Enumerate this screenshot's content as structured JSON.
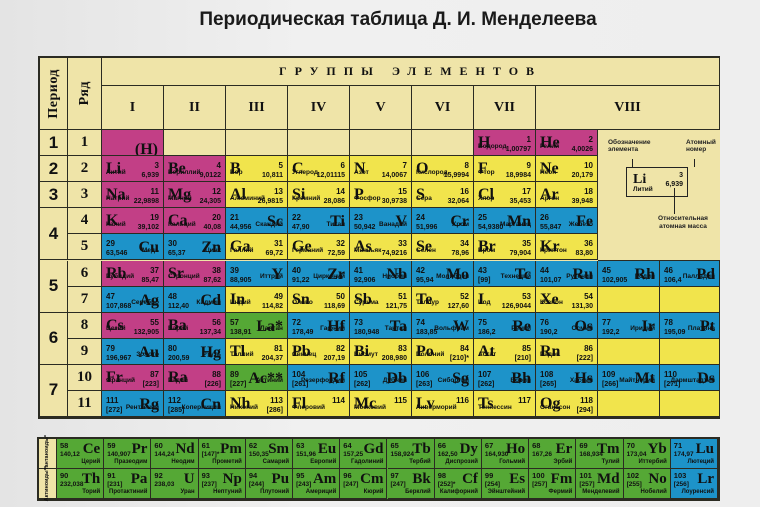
{
  "title": "Периодическая таблица Д. И. Менделеева",
  "colors": {
    "s_block": "#c23f86",
    "p_block": "#f1e44c",
    "d_block": "#1d93c9",
    "f_block": "#55a835",
    "header_bg": "#efe4a8",
    "border": "#2b2b22"
  },
  "headers": {
    "period": "Период",
    "row": "Ряд",
    "groups_title": "ГРУППЫ ЭЛЕМЕНТОВ",
    "groups": [
      "I",
      "II",
      "III",
      "IV",
      "V",
      "VI",
      "VII",
      "VIII"
    ]
  },
  "periods": [
    "1",
    "2",
    "3",
    "4",
    "5",
    "6",
    "7"
  ],
  "rows": [
    "1",
    "2",
    "3",
    "4",
    "5",
    "6",
    "7",
    "8",
    "9",
    "10",
    "11"
  ],
  "hydrogen_placeholder": "(H)",
  "legend": {
    "symbol_label": "Обозначение элемента",
    "number_label": "Атомный номер",
    "mass_label": "Относительная атомная масса",
    "example": {
      "symbol": "Li",
      "number": "3",
      "mass": "6,939",
      "name": "Литий"
    }
  },
  "elements": {
    "H": {
      "symbol": "H",
      "number": "1",
      "mass": "1,00797",
      "name": "Водород"
    },
    "He": {
      "symbol": "He",
      "number": "2",
      "mass": "4,0026",
      "name": "Гелий"
    },
    "Li": {
      "symbol": "Li",
      "number": "3",
      "mass": "6,939",
      "name": "Литий"
    },
    "Be": {
      "symbol": "Be",
      "number": "4",
      "mass": "9,0122",
      "name": "Бериллий"
    },
    "B": {
      "symbol": "B",
      "number": "5",
      "mass": "10,811",
      "name": "Бор"
    },
    "C": {
      "symbol": "C",
      "number": "6",
      "mass": "12,01115",
      "name": "Углерод"
    },
    "N": {
      "symbol": "N",
      "number": "7",
      "mass": "14,0067",
      "name": "Азот"
    },
    "O": {
      "symbol": "O",
      "number": "8",
      "mass": "15,9994",
      "name": "Кислород"
    },
    "F": {
      "symbol": "F",
      "number": "9",
      "mass": "18,9984",
      "name": "Фтор"
    },
    "Ne": {
      "symbol": "Ne",
      "number": "10",
      "mass": "20,179",
      "name": "Неон"
    },
    "Na": {
      "symbol": "Na",
      "number": "11",
      "mass": "22,9898",
      "name": "Натрий"
    },
    "Mg": {
      "symbol": "Mg",
      "number": "12",
      "mass": "24,305",
      "name": "Магний"
    },
    "Al": {
      "symbol": "Al",
      "number": "13",
      "mass": "26,9815",
      "name": "Алюминий"
    },
    "Si": {
      "symbol": "Si",
      "number": "14",
      "mass": "28,086",
      "name": "Кремний"
    },
    "P": {
      "symbol": "P",
      "number": "15",
      "mass": "30,9738",
      "name": "Фосфор"
    },
    "S": {
      "symbol": "S",
      "number": "16",
      "mass": "32,064",
      "name": "Сера"
    },
    "Cl": {
      "symbol": "Cl",
      "number": "17",
      "mass": "35,453",
      "name": "Хлор"
    },
    "Ar": {
      "symbol": "Ar",
      "number": "18",
      "mass": "39,948",
      "name": "Аргон"
    },
    "K": {
      "symbol": "K",
      "number": "19",
      "mass": "39,102",
      "name": "Калий"
    },
    "Ca": {
      "symbol": "Ca",
      "number": "20",
      "mass": "40,08",
      "name": "Кальций"
    },
    "Sc": {
      "symbol": "Sc",
      "number": "21",
      "mass": "44,956",
      "name": "Скандий"
    },
    "Ti": {
      "symbol": "Ti",
      "number": "22",
      "mass": "47,90",
      "name": "Титан"
    },
    "V": {
      "symbol": "V",
      "number": "23",
      "mass": "50,942",
      "name": "Ванадий"
    },
    "Cr": {
      "symbol": "Cr",
      "number": "24",
      "mass": "51,996",
      "name": "Хром"
    },
    "Mn": {
      "symbol": "Mn",
      "number": "25",
      "mass": "54,9380",
      "name": "Марганец"
    },
    "Fe": {
      "symbol": "Fe",
      "number": "26",
      "mass": "55,847",
      "name": "Железо"
    },
    "Co": {
      "symbol": "Co",
      "number": "27",
      "mass": "58,9330",
      "name": "Кобальт"
    },
    "Ni": {
      "symbol": "Ni",
      "number": "28",
      "mass": "58,71",
      "name": "Никель"
    },
    "Cu": {
      "symbol": "Cu",
      "number": "29",
      "mass": "63,546",
      "name": "Медь"
    },
    "Zn": {
      "symbol": "Zn",
      "number": "30",
      "mass": "65,37",
      "name": "Цинк"
    },
    "Ga": {
      "symbol": "Ga",
      "number": "31",
      "mass": "69,72",
      "name": "Галлий"
    },
    "Ge": {
      "symbol": "Ge",
      "number": "32",
      "mass": "72,59",
      "name": "Германий"
    },
    "As": {
      "symbol": "As",
      "number": "33",
      "mass": "74,9216",
      "name": "Мышьяк"
    },
    "Se": {
      "symbol": "Se",
      "number": "34",
      "mass": "78,96",
      "name": "Селен"
    },
    "Br": {
      "symbol": "Br",
      "number": "35",
      "mass": "79,904",
      "name": "Бром"
    },
    "Kr": {
      "symbol": "Kr",
      "number": "36",
      "mass": "83,80",
      "name": "Криптон"
    },
    "Rb": {
      "symbol": "Rb",
      "number": "37",
      "mass": "85,47",
      "name": "Рубидий"
    },
    "Sr": {
      "symbol": "Sr",
      "number": "38",
      "mass": "87,62",
      "name": "Стронций"
    },
    "Y": {
      "symbol": "Y",
      "number": "39",
      "mass": "88,905",
      "name": "Иттрий"
    },
    "Zr": {
      "symbol": "Zr",
      "number": "40",
      "mass": "91,22",
      "name": "Цирконий"
    },
    "Nb": {
      "symbol": "Nb",
      "number": "41",
      "mass": "92,906",
      "name": "Ниобий"
    },
    "Mo": {
      "symbol": "Mo",
      "number": "42",
      "mass": "95,94",
      "name": "Молибден"
    },
    "Tc": {
      "symbol": "Tc",
      "number": "43",
      "mass": "[99]",
      "name": "Технеций"
    },
    "Ru": {
      "symbol": "Ru",
      "number": "44",
      "mass": "101,07",
      "name": "Рутений"
    },
    "Rh": {
      "symbol": "Rh",
      "number": "45",
      "mass": "102,905",
      "name": "Родий"
    },
    "Pd": {
      "symbol": "Pd",
      "number": "46",
      "mass": "106,4",
      "name": "Палладий"
    },
    "Ag": {
      "symbol": "Ag",
      "number": "47",
      "mass": "107,868",
      "name": "Серебро"
    },
    "Cd": {
      "symbol": "Cd",
      "number": "48",
      "mass": "112,40",
      "name": "Кадмий"
    },
    "In": {
      "symbol": "In",
      "number": "49",
      "mass": "114,82",
      "name": "Индий"
    },
    "Sn": {
      "symbol": "Sn",
      "number": "50",
      "mass": "118,69",
      "name": "Олово"
    },
    "Sb": {
      "symbol": "Sb",
      "number": "51",
      "mass": "121,75",
      "name": "Сурьма"
    },
    "Te": {
      "symbol": "Te",
      "number": "52",
      "mass": "127,60",
      "name": "Теллур"
    },
    "I": {
      "symbol": "I",
      "number": "53",
      "mass": "126,9044",
      "name": "Иод"
    },
    "Xe": {
      "symbol": "Xe",
      "number": "54",
      "mass": "131,30",
      "name": "Ксенон"
    },
    "Cs": {
      "symbol": "Cs",
      "number": "55",
      "mass": "132,905",
      "name": "Цезий"
    },
    "Ba": {
      "symbol": "Ba",
      "number": "56",
      "mass": "137,34",
      "name": "Барий"
    },
    "La": {
      "symbol": "La*",
      "number": "57",
      "mass": "138,91",
      "name": "Лантан"
    },
    "Hf": {
      "symbol": "Hf",
      "number": "72",
      "mass": "178,49",
      "name": "Гафний"
    },
    "Ta": {
      "symbol": "Ta",
      "number": "73",
      "mass": "180,948",
      "name": "Тантал"
    },
    "W": {
      "symbol": "W",
      "number": "74",
      "mass": "183,85",
      "name": "Вольфрам"
    },
    "Re": {
      "symbol": "Re",
      "number": "75",
      "mass": "186,2",
      "name": "Рений"
    },
    "Os": {
      "symbol": "Os",
      "number": "76",
      "mass": "190,2",
      "name": "Осмий"
    },
    "Ir": {
      "symbol": "Ir",
      "number": "77",
      "mass": "192,2",
      "name": "Иридий"
    },
    "Pt": {
      "symbol": "Pt",
      "number": "78",
      "mass": "195,09",
      "name": "Платина"
    },
    "Au": {
      "symbol": "Au",
      "number": "79",
      "mass": "196,967",
      "name": "Золото"
    },
    "Hg": {
      "symbol": "Hg",
      "number": "80",
      "mass": "200,59",
      "name": "Ртуть"
    },
    "Tl": {
      "symbol": "Tl",
      "number": "81",
      "mass": "204,37",
      "name": "Таллий"
    },
    "Pb": {
      "symbol": "Pb",
      "number": "82",
      "mass": "207,19",
      "name": "Свинец"
    },
    "Bi": {
      "symbol": "Bi",
      "number": "83",
      "mass": "208,980",
      "name": "Висмут"
    },
    "Po": {
      "symbol": "Po",
      "number": "84",
      "mass": "[210]*",
      "name": "Полоний"
    },
    "At": {
      "symbol": "At",
      "number": "85",
      "mass": "[210]",
      "name": "Астат"
    },
    "Rn": {
      "symbol": "Rn",
      "number": "86",
      "mass": "[222]",
      "name": "Радон"
    },
    "Fr": {
      "symbol": "Fr",
      "number": "87",
      "mass": "[223]",
      "name": "Франций"
    },
    "Ra": {
      "symbol": "Ra",
      "number": "88",
      "mass": "[226]",
      "name": "Радий"
    },
    "Ac": {
      "symbol": "Ac**",
      "number": "89",
      "mass": "[227]",
      "name": "Актиний"
    },
    "Rf": {
      "symbol": "Rf",
      "number": "104",
      "mass": "[261]",
      "name": "Резерфордий"
    },
    "Db": {
      "symbol": "Db",
      "number": "105",
      "mass": "[262]",
      "name": "Дубний"
    },
    "Sg": {
      "symbol": "Sg",
      "number": "106",
      "mass": "[263]",
      "name": "Сиборгий"
    },
    "Bh": {
      "symbol": "Bh",
      "number": "107",
      "mass": "[262]",
      "name": "Борий"
    },
    "Hs": {
      "symbol": "Hs",
      "number": "108",
      "mass": "[265]",
      "name": "Хассий"
    },
    "Mt": {
      "symbol": "Mt",
      "number": "109",
      "mass": "[266]",
      "name": "Майтнерий"
    },
    "Ds": {
      "symbol": "Ds",
      "number": "110",
      "mass": "[271]",
      "name": "Дармштадтий"
    },
    "Rg": {
      "symbol": "Rg",
      "number": "111",
      "mass": "[272]",
      "name": "Рентгений"
    },
    "Cn": {
      "symbol": "Cn",
      "number": "112",
      "mass": "[285]",
      "name": "Коперниций"
    },
    "Nh": {
      "symbol": "Nh",
      "number": "113",
      "mass": "[286]",
      "name": "Нихоний"
    },
    "Fl": {
      "symbol": "Fl",
      "number": "114",
      "mass": "",
      "name": "Флеровий"
    },
    "Mc": {
      "symbol": "Mc",
      "number": "115",
      "mass": "",
      "name": "Московий"
    },
    "Lv": {
      "symbol": "Lv",
      "number": "116",
      "mass": "",
      "name": "Ливерморий"
    },
    "Ts": {
      "symbol": "Ts",
      "number": "117",
      "mass": "",
      "name": "Теннессин"
    },
    "Og": {
      "symbol": "Og",
      "number": "118",
      "mass": "[294]",
      "name": "Оганесон"
    }
  },
  "f_block": {
    "lanthanides_label": "Лантаноиды*",
    "actinides_label": "Актиноиды**",
    "lanthanides": [
      {
        "symbol": "Ce",
        "number": "58",
        "mass": "140,12",
        "name": "Церий"
      },
      {
        "symbol": "Pr",
        "number": "59",
        "mass": "140,907",
        "name": "Празеодим"
      },
      {
        "symbol": "Nd",
        "number": "60",
        "mass": "144,24",
        "name": "Неодим"
      },
      {
        "symbol": "Pm",
        "number": "61",
        "mass": "[147]*",
        "name": "Прометий"
      },
      {
        "symbol": "Sm",
        "number": "62",
        "mass": "150,35",
        "name": "Самарий"
      },
      {
        "symbol": "Eu",
        "number": "63",
        "mass": "151,96",
        "name": "Европий"
      },
      {
        "symbol": "Gd",
        "number": "64",
        "mass": "157,25",
        "name": "Гадолиний"
      },
      {
        "symbol": "Tb",
        "number": "65",
        "mass": "158,924",
        "name": "Тербий"
      },
      {
        "symbol": "Dy",
        "number": "66",
        "mass": "162,50",
        "name": "Диспрозий"
      },
      {
        "symbol": "Ho",
        "number": "67",
        "mass": "164,930",
        "name": "Гольмий"
      },
      {
        "symbol": "Er",
        "number": "68",
        "mass": "167,26",
        "name": "Эрбий"
      },
      {
        "symbol": "Tm",
        "number": "69",
        "mass": "168,934",
        "name": "Тулий"
      },
      {
        "symbol": "Yb",
        "number": "70",
        "mass": "173,04",
        "name": "Иттербий"
      },
      {
        "symbol": "Lu",
        "number": "71",
        "mass": "174,97",
        "name": "Лютеций"
      }
    ],
    "actinides": [
      {
        "symbol": "Th",
        "number": "90",
        "mass": "232,038",
        "name": "Торий"
      },
      {
        "symbol": "Pa",
        "number": "91",
        "mass": "[231]",
        "name": "Протактиний"
      },
      {
        "symbol": "U",
        "number": "92",
        "mass": "238,03",
        "name": "Уран"
      },
      {
        "symbol": "Np",
        "number": "93",
        "mass": "[237]",
        "name": "Нептуний"
      },
      {
        "symbol": "Pu",
        "number": "94",
        "mass": "[244]",
        "name": "Плутоний"
      },
      {
        "symbol": "Am",
        "number": "95",
        "mass": "[243]",
        "name": "Америций"
      },
      {
        "symbol": "Cm",
        "number": "96",
        "mass": "[247]",
        "name": "Кюрий"
      },
      {
        "symbol": "Bk",
        "number": "97",
        "mass": "[247]",
        "name": "Берклий"
      },
      {
        "symbol": "Cf",
        "number": "98",
        "mass": "[252]*",
        "name": "Калифорний"
      },
      {
        "symbol": "Es",
        "number": "99",
        "mass": "[254]",
        "name": "Эйнштейний"
      },
      {
        "symbol": "Fm",
        "number": "100",
        "mass": "[257]",
        "name": "Фермий"
      },
      {
        "symbol": "Md",
        "number": "101",
        "mass": "[257]",
        "name": "Менделевий"
      },
      {
        "symbol": "No",
        "number": "102",
        "mass": "[255]",
        "name": "Нобелий"
      },
      {
        "symbol": "Lr",
        "number": "103",
        "mass": "[256]",
        "name": "Лоуренсий"
      }
    ]
  }
}
